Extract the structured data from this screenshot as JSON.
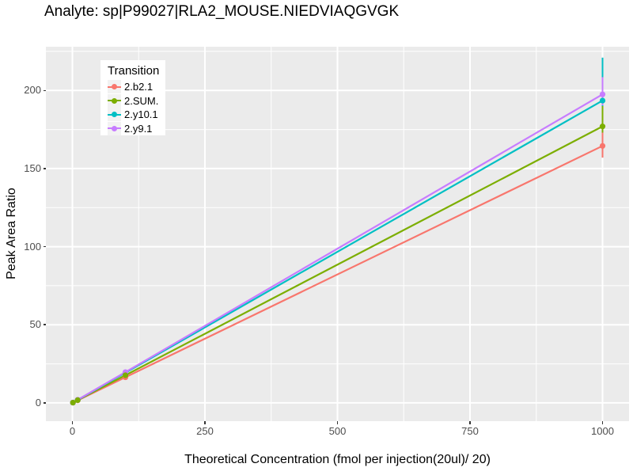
{
  "chart_data": {
    "type": "line",
    "title": "Analyte: sp|P99027|RLA2_MOUSE.NIEDVIAQGVGK",
    "xlabel": "Theoretical Concentration (fmol per injection(20ul)/ 20)",
    "ylabel": "Peak Area Ratio",
    "xlim": [
      -50,
      1050
    ],
    "ylim": [
      -11.7,
      228
    ],
    "x_major_ticks": [
      0,
      250,
      500,
      750,
      1000
    ],
    "x_tick_labels": [
      "0",
      "250",
      "500",
      "750",
      "1000"
    ],
    "x_minor_ticks": [
      125,
      375,
      625,
      875
    ],
    "y_major_ticks": [
      0,
      50,
      100,
      150,
      200
    ],
    "y_tick_labels": [
      "0",
      "50",
      "100",
      "150",
      "200"
    ],
    "y_minor_ticks": [
      25,
      75,
      125,
      175,
      225
    ],
    "panel_background": "#EBEBEB",
    "gridline_color": "#FFFFFF",
    "grid": "major+minor",
    "legend": {
      "title": "Transition",
      "position": "top-left-inset",
      "key_background": "#F2F2F2"
    },
    "series": [
      {
        "name": "2.b2.1",
        "color": "#F8766D",
        "x": [
          1,
          10,
          100,
          1000
        ],
        "y": [
          0.16,
          1.6,
          16.4,
          164.5
        ],
        "ci_at_1000": [
          157,
          174
        ]
      },
      {
        "name": "2.SUM.",
        "color": "#7CAE00",
        "x": [
          1,
          10,
          100,
          1000
        ],
        "y": [
          0.18,
          1.8,
          17.7,
          177.0
        ],
        "ci_at_1000": [
          173,
          190
        ]
      },
      {
        "name": "2.y10.1",
        "color": "#00BFC4",
        "x": [
          1,
          10,
          100,
          1000
        ],
        "y": [
          0.19,
          1.9,
          19.3,
          193.5
        ],
        "ci_at_1000": [
          186,
          221
        ]
      },
      {
        "name": "2.y9.1",
        "color": "#C77CFF",
        "x": [
          1,
          10,
          100,
          1000
        ],
        "y": [
          0.2,
          2.0,
          19.7,
          197.5
        ],
        "ci_at_1000": [
          190.5,
          208.5
        ]
      }
    ]
  }
}
